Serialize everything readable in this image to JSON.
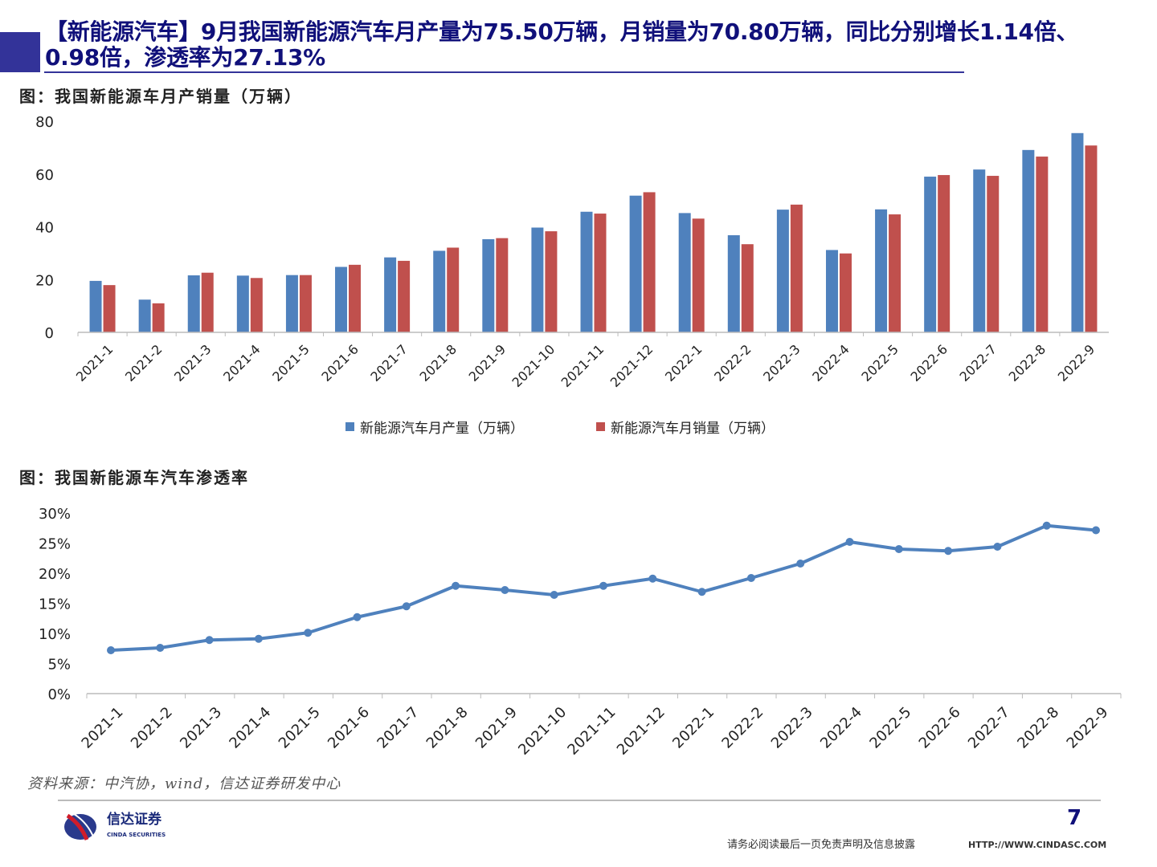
{
  "header": {
    "title": "【新能源汽车】9月我国新能源汽车月产量为75.50万辆，月销量为70.80万辆，同比分别增长1.14倍、0.98倍，渗透率为27.13%"
  },
  "colors": {
    "brand": "#333399",
    "title": "#10107A",
    "production": "#4F81BD",
    "sales": "#C0504D",
    "line": "#4F81BD"
  },
  "chart_data": [
    {
      "type": "bar",
      "title": "图：我国新能源车月产销量（万辆）",
      "categories": [
        "2021-1",
        "2021-2",
        "2021-3",
        "2021-4",
        "2021-5",
        "2021-6",
        "2021-7",
        "2021-8",
        "2021-9",
        "2021-10",
        "2021-11",
        "2021-12",
        "2022-1",
        "2022-2",
        "2022-3",
        "2022-4",
        "2022-5",
        "2022-6",
        "2022-7",
        "2022-8",
        "2022-9"
      ],
      "series": [
        {
          "name": "新能源汽车月产量（万辆）",
          "values": [
            19.5,
            12.4,
            21.6,
            21.5,
            21.7,
            24.8,
            28.4,
            30.9,
            35.3,
            39.7,
            45.7,
            51.8,
            45.2,
            36.8,
            46.5,
            31.2,
            46.6,
            59.0,
            61.7,
            69.1,
            75.5
          ]
        },
        {
          "name": "新能源汽车月销量（万辆）",
          "values": [
            17.9,
            11.0,
            22.6,
            20.6,
            21.7,
            25.6,
            27.1,
            32.1,
            35.7,
            38.3,
            45.0,
            53.1,
            43.1,
            33.4,
            48.4,
            29.9,
            44.7,
            59.6,
            59.3,
            66.6,
            70.8
          ]
        }
      ],
      "ylim": [
        0,
        80
      ],
      "yticks": [
        "0",
        "20",
        "40",
        "60",
        "80"
      ],
      "grid": false,
      "legend": "bottom"
    },
    {
      "type": "line",
      "title": "图：我国新能源车汽车渗透率",
      "categories": [
        "2021-1",
        "2021-2",
        "2021-3",
        "2021-4",
        "2021-5",
        "2021-6",
        "2021-7",
        "2021-8",
        "2021-9",
        "2021-10",
        "2021-11",
        "2021-12",
        "2022-1",
        "2022-2",
        "2022-3",
        "2022-4",
        "2022-5",
        "2022-6",
        "2022-7",
        "2022-8",
        "2022-9"
      ],
      "values": [
        7.2,
        7.6,
        8.9,
        9.1,
        10.1,
        12.7,
        14.5,
        17.9,
        17.2,
        16.4,
        17.9,
        19.1,
        16.9,
        19.2,
        21.6,
        25.2,
        24.0,
        23.7,
        24.4,
        27.9,
        27.13
      ],
      "ylim": [
        0,
        30
      ],
      "yticks": [
        "0%",
        "5%",
        "10%",
        "15%",
        "20%",
        "25%",
        "30%"
      ],
      "grid": false,
      "legend": "none"
    }
  ],
  "footer": {
    "source": "资料来源：中汽协，wind，信达证券研发中心",
    "page_number": "7",
    "disclaimer": "请务必阅读最后一页免责声明及信息披露",
    "url": "HTTP://WWW.CINDASC.COM",
    "logo_cn": "信达证券",
    "logo_en": "CINDA SECURITIES"
  }
}
